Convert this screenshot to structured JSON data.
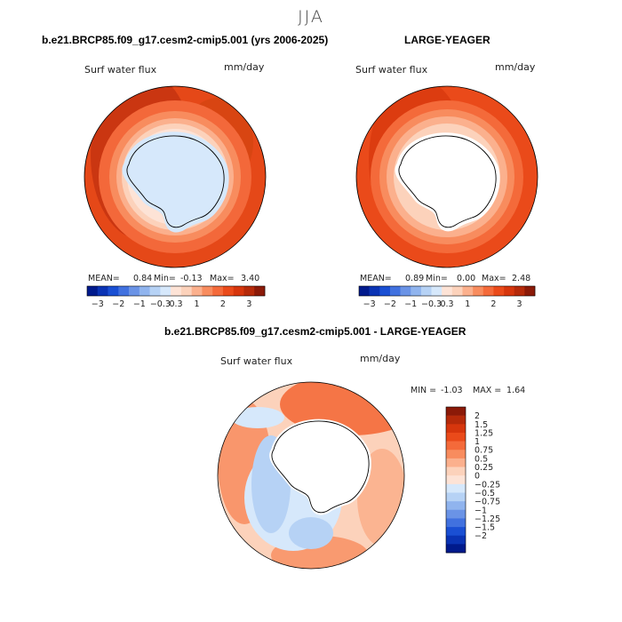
{
  "season": "JJA",
  "colors": {
    "dark_red": "#8b1a08",
    "red1": "#b52a0a",
    "red2": "#d6360d",
    "red3": "#ea4a1a",
    "orange1": "#f46a3a",
    "orange2": "#f88c5e",
    "salmon": "#fbb08d",
    "peach": "#fcd2bb",
    "light_peach": "#fde3d6",
    "white": "#ffffff",
    "light_blue": "#d6e8fb",
    "blue1": "#b6d2f5",
    "blue2": "#90b4ee",
    "blue3": "#6a93e6",
    "blue4": "#4171df",
    "blue5": "#1a4fd3",
    "blue6": "#0a33b4",
    "navy": "#001a8c"
  },
  "panels": [
    {
      "id": "model",
      "title": "b.e21.BRCP85.f09_g17.cesm2-cmip5.001 (yrs 2006-2025)",
      "variable": "Surf water flux",
      "units": "mm/day",
      "stats": {
        "mean_label": "MEAN=",
        "mean": "0.84",
        "min_label": "Min=",
        "min": "-0.13",
        "max_label": "Max=",
        "max": "3.40"
      },
      "colorbar_labels": [
        "-3",
        "-2",
        "-1",
        "-0.3",
        "0.3",
        "1",
        "2",
        "3"
      ]
    },
    {
      "id": "obs",
      "title": "LARGE-YEAGER",
      "variable": "Surf water flux",
      "units": "mm/day",
      "stats": {
        "mean_label": "MEAN=",
        "mean": "0.89",
        "min_label": "Min=",
        "min": "0.00",
        "max_label": "Max=",
        "max": "2.48"
      },
      "colorbar_labels": [
        "-3",
        "-2",
        "-1",
        "-0.3",
        "0.3",
        "1",
        "2",
        "3"
      ]
    },
    {
      "id": "diff",
      "title": "b.e21.BRCP85.f09_g17.cesm2-cmip5.001 - LARGE-YEAGER",
      "variable": "Surf water flux",
      "units": "mm/day",
      "stats": {
        "min_label": "MIN =",
        "min": "-1.03",
        "max_label": "MAX =",
        "max": "1.64"
      },
      "colorbar_labels": [
        "2",
        "1.5",
        "1.25",
        "1",
        "0.75",
        "0.5",
        "0.25",
        "0",
        "-0.25",
        "-0.5",
        "-0.75",
        "-1",
        "-1.25",
        "-1.5",
        "-2"
      ]
    }
  ]
}
